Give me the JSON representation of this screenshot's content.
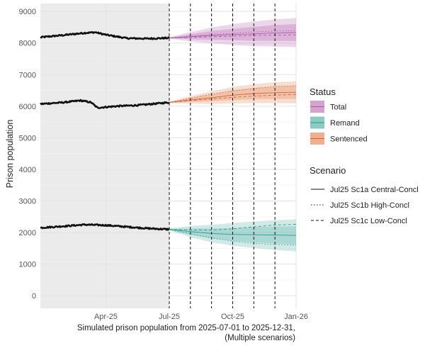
{
  "chart_data": {
    "type": "line",
    "title": "",
    "ylabel": "Prison population",
    "caption_lines": [
      "Simulated prison population from 2025-07-01 to 2025-12-31,",
      "(Multiple scenarios)"
    ],
    "x_ticks": [
      "Apr-25",
      "Jul-25",
      "Oct-25",
      "Jan-26"
    ],
    "ylim": [
      -400,
      9250
    ],
    "y_ticks": [
      0,
      1000,
      2000,
      3000,
      4000,
      5000,
      6000,
      7000,
      8000,
      9000
    ],
    "y_tick_labels": [
      "0",
      "1000",
      "2000",
      "3000",
      "4000",
      "5000",
      "6000",
      "7000",
      "8000",
      "9000"
    ],
    "x_range_months": [
      -6.1,
      6.0
    ],
    "historical_shading": [
      -6.1,
      0
    ],
    "vertical_dashed_lines_months": [
      0,
      1,
      2,
      3,
      4,
      5
    ],
    "series": [
      {
        "status": "Total",
        "color": "#b05aa8",
        "band_color": "#c98ac4",
        "historical_anchors": [
          [
            -6.1,
            8180
          ],
          [
            -5.0,
            8250
          ],
          [
            -4.0,
            8320
          ],
          [
            -3.5,
            8340
          ],
          [
            -3.0,
            8260
          ],
          [
            -2.0,
            8150
          ],
          [
            -1.0,
            8140
          ],
          [
            0,
            8160
          ]
        ],
        "central": [
          [
            0,
            8160
          ],
          [
            1,
            8200
          ],
          [
            2,
            8240
          ],
          [
            3,
            8270
          ],
          [
            4,
            8290
          ],
          [
            5,
            8320
          ],
          [
            6,
            8330
          ]
        ],
        "high": [
          [
            0,
            8160
          ],
          [
            1,
            8220
          ],
          [
            2,
            8270
          ],
          [
            3,
            8310
          ],
          [
            4,
            8350
          ],
          [
            5,
            8380
          ],
          [
            6,
            8390
          ]
        ],
        "low": [
          [
            0,
            8160
          ],
          [
            1,
            8180
          ],
          [
            2,
            8200
          ],
          [
            3,
            8220
          ],
          [
            4,
            8240
          ],
          [
            5,
            8250
          ],
          [
            6,
            8260
          ]
        ],
        "band_outer": [
          [
            0,
            20
          ],
          [
            1,
            150
          ],
          [
            2,
            250
          ],
          [
            3,
            330
          ],
          [
            4,
            390
          ],
          [
            5,
            430
          ],
          [
            6,
            460
          ]
        ],
        "band_inner": [
          [
            0,
            10
          ],
          [
            1,
            80
          ],
          [
            2,
            140
          ],
          [
            3,
            180
          ],
          [
            4,
            220
          ],
          [
            5,
            250
          ],
          [
            6,
            270
          ]
        ]
      },
      {
        "status": "Sentenced",
        "color": "#d9632c",
        "band_color": "#e8a07c",
        "historical_anchors": [
          [
            -6.1,
            6070
          ],
          [
            -5.0,
            6120
          ],
          [
            -4.2,
            6180
          ],
          [
            -3.7,
            6120
          ],
          [
            -3.4,
            5950
          ],
          [
            -2.5,
            6000
          ],
          [
            -1.5,
            6030
          ],
          [
            0,
            6120
          ]
        ],
        "central": [
          [
            0,
            6120
          ],
          [
            1,
            6200
          ],
          [
            2,
            6270
          ],
          [
            3,
            6350
          ],
          [
            4,
            6400
          ],
          [
            5,
            6430
          ],
          [
            6,
            6440
          ]
        ],
        "high": [
          [
            0,
            6120
          ],
          [
            1,
            6250
          ],
          [
            2,
            6380
          ],
          [
            3,
            6480
          ],
          [
            4,
            6560
          ],
          [
            5,
            6620
          ],
          [
            6,
            6650
          ]
        ],
        "low": [
          [
            0,
            6120
          ],
          [
            1,
            6180
          ],
          [
            2,
            6230
          ],
          [
            3,
            6280
          ],
          [
            4,
            6320
          ],
          [
            5,
            6350
          ],
          [
            6,
            6370
          ]
        ],
        "band_outer": [
          [
            0,
            20
          ],
          [
            1,
            120
          ],
          [
            2,
            200
          ],
          [
            3,
            260
          ],
          [
            4,
            300
          ],
          [
            5,
            330
          ],
          [
            6,
            350
          ]
        ],
        "band_inner": [
          [
            0,
            10
          ],
          [
            1,
            70
          ],
          [
            2,
            110
          ],
          [
            3,
            150
          ],
          [
            4,
            180
          ],
          [
            5,
            200
          ],
          [
            6,
            215
          ]
        ]
      },
      {
        "status": "Remand",
        "color": "#2a9a8e",
        "band_color": "#7dc4bb",
        "historical_anchors": [
          [
            -6.1,
            2150
          ],
          [
            -5.0,
            2200
          ],
          [
            -4.0,
            2250
          ],
          [
            -3.0,
            2230
          ],
          [
            -2.0,
            2180
          ],
          [
            -1.0,
            2130
          ],
          [
            0,
            2100
          ]
        ],
        "central": [
          [
            0,
            2100
          ],
          [
            1,
            2030
          ],
          [
            2,
            1970
          ],
          [
            3,
            1940
          ],
          [
            4,
            1930
          ],
          [
            5,
            1920
          ],
          [
            6,
            1910
          ]
        ],
        "high": [
          [
            0,
            2100
          ],
          [
            1,
            1960
          ],
          [
            2,
            1830
          ],
          [
            3,
            1730
          ],
          [
            4,
            1660
          ],
          [
            5,
            1620
          ],
          [
            6,
            1600
          ]
        ],
        "low": [
          [
            0,
            2100
          ],
          [
            1,
            2080
          ],
          [
            2,
            2080
          ],
          [
            3,
            2120
          ],
          [
            4,
            2180
          ],
          [
            5,
            2240
          ],
          [
            6,
            2260
          ]
        ],
        "band_outer": [
          [
            0,
            30
          ],
          [
            1,
            180
          ],
          [
            2,
            280
          ],
          [
            3,
            360
          ],
          [
            4,
            420
          ],
          [
            5,
            470
          ],
          [
            6,
            510
          ]
        ],
        "band_inner": [
          [
            0,
            15
          ],
          [
            1,
            100
          ],
          [
            2,
            160
          ],
          [
            3,
            200
          ],
          [
            4,
            240
          ],
          [
            5,
            270
          ],
          [
            6,
            290
          ]
        ]
      }
    ],
    "legend": {
      "status_title": "Status",
      "status_items": [
        {
          "label": "Total",
          "fill": "#d4a2cf",
          "stroke": "#b05aa8"
        },
        {
          "label": "Remand",
          "fill": "#8ccac2",
          "stroke": "#2a9a8e"
        },
        {
          "label": "Sentenced",
          "fill": "#eeb091",
          "stroke": "#d9632c"
        }
      ],
      "scenario_title": "Scenario",
      "scenario_items": [
        {
          "label": "Jul25 Sc1a Central-Concl",
          "dash": "solid"
        },
        {
          "label": "Jul25 Sc1b High-Concl",
          "dash": "dotted"
        },
        {
          "label": "Jul25 Sc1c Low-Concl",
          "dash": "dashed"
        }
      ]
    }
  }
}
